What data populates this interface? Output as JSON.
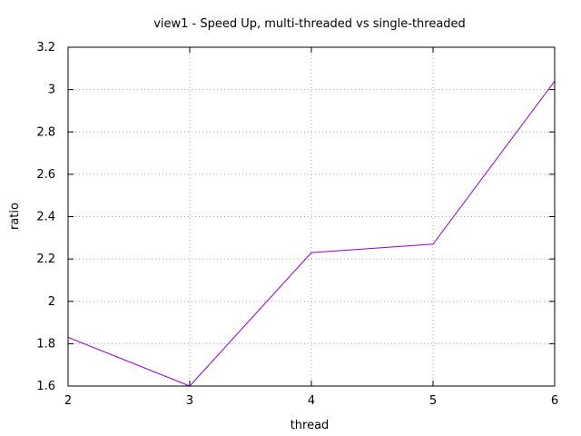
{
  "chart_data": {
    "type": "line",
    "title": "view1 - Speed Up, multi-threaded vs single-threaded",
    "xlabel": "thread",
    "ylabel": "ratio",
    "xlim": [
      2,
      6
    ],
    "ylim": [
      1.6,
      3.2
    ],
    "x_ticks": [
      "2",
      "3",
      "4",
      "5",
      "6"
    ],
    "y_ticks": [
      "1.6",
      "1.8",
      "2",
      "2.2",
      "2.4",
      "2.6",
      "2.8",
      "3",
      "3.2"
    ],
    "grid": true,
    "series": [
      {
        "color": "#9400d3",
        "x": [
          2,
          3,
          4,
          5,
          6
        ],
        "y": [
          1.83,
          1.6,
          2.23,
          2.27,
          3.04
        ]
      }
    ]
  }
}
